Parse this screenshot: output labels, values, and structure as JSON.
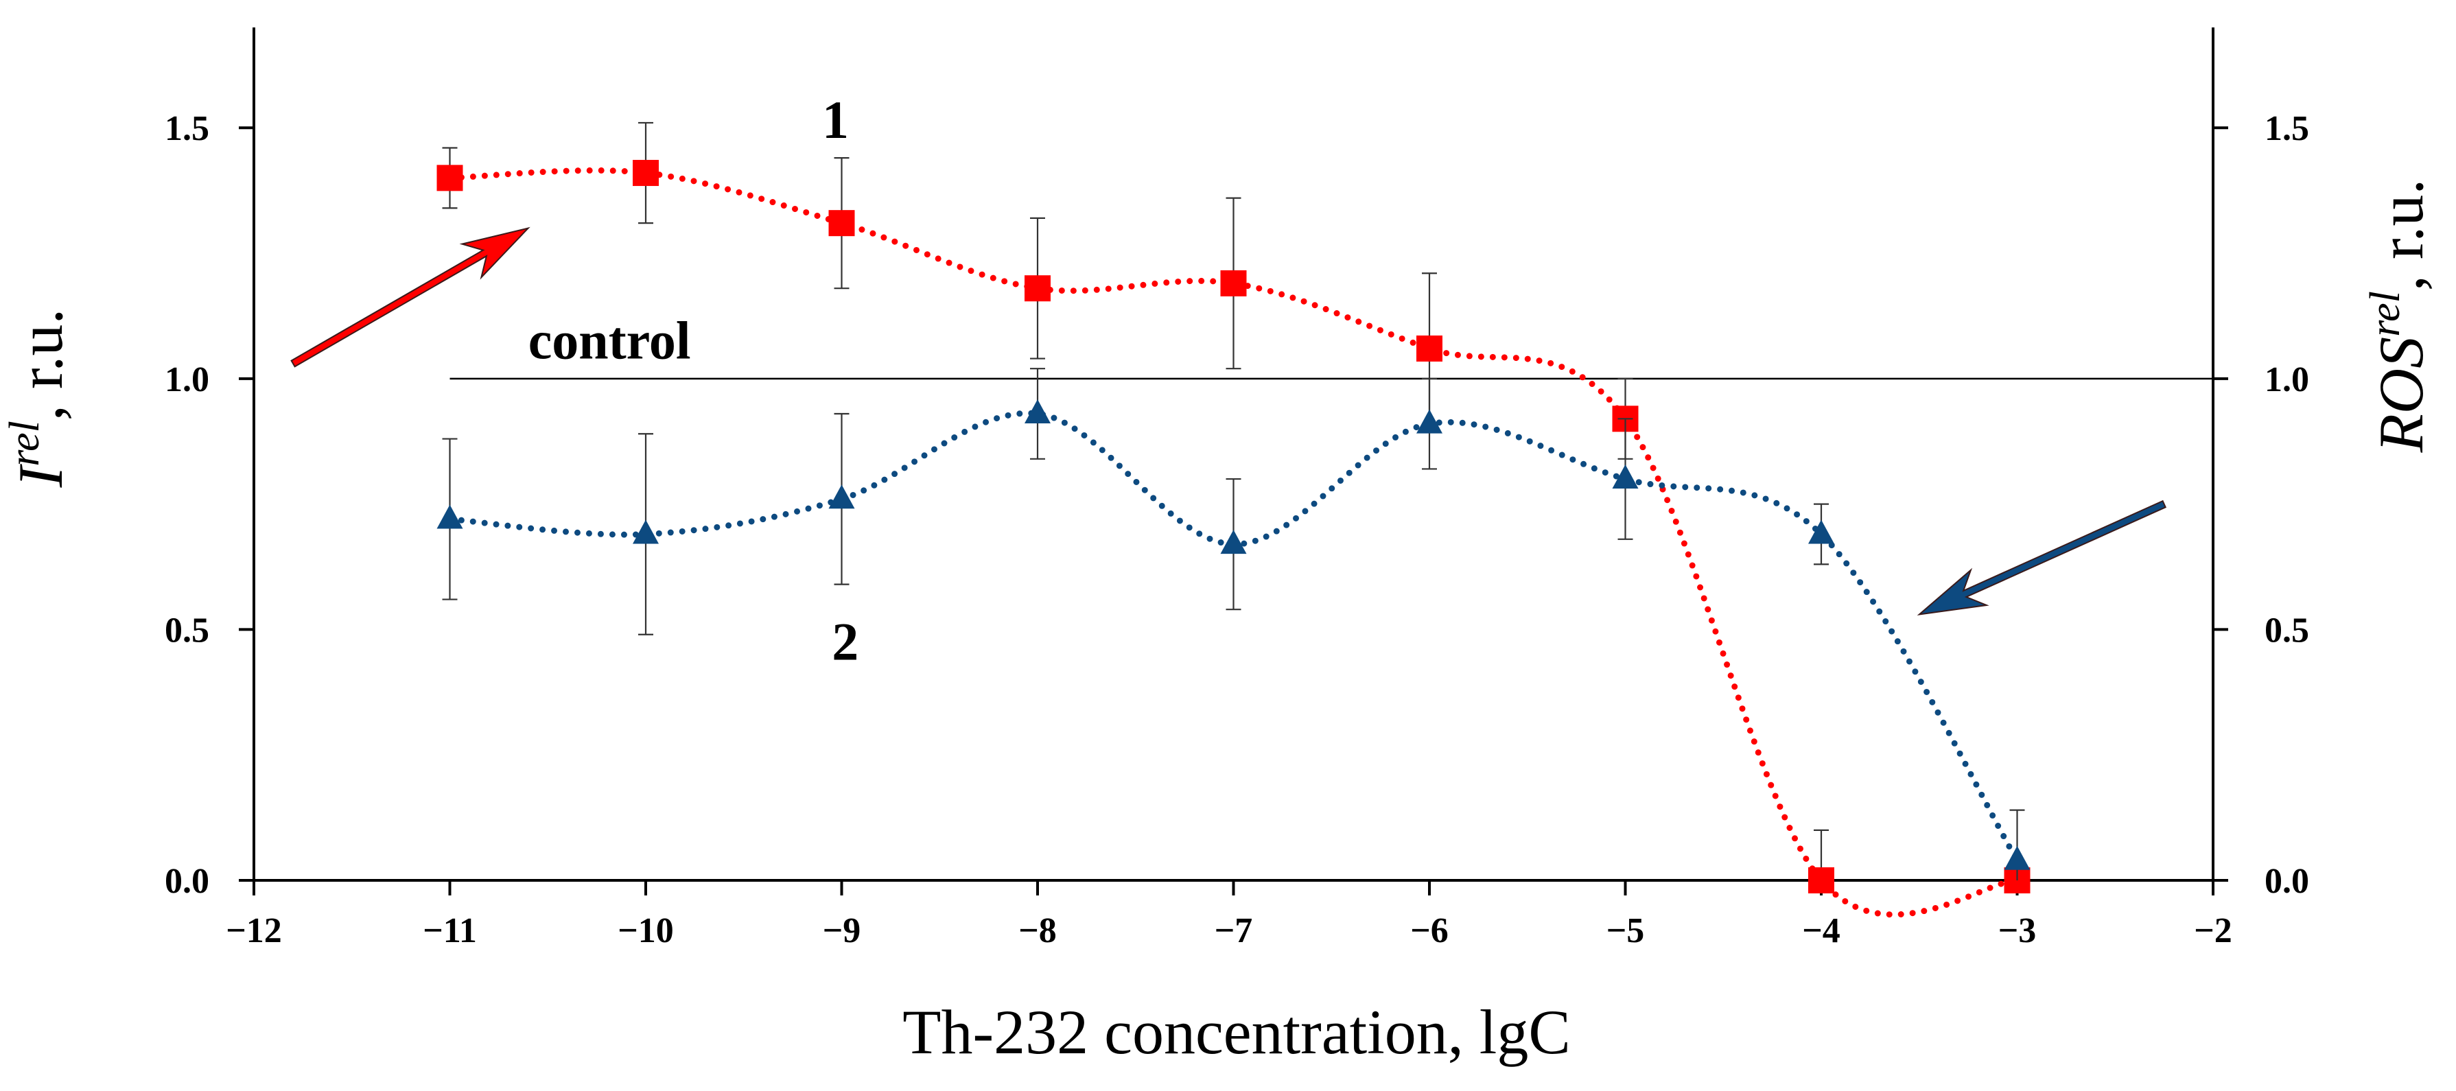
{
  "chart_data": {
    "type": "line",
    "title": "",
    "xlabel": "Th-232 concentration, lgC",
    "ylabel": {
      "main": "I",
      "sup": "rel",
      "unit": ", r.u."
    },
    "y2label": {
      "main": "ROS",
      "sup": "rel",
      "unit": ", r.u."
    },
    "xlim": [
      -12,
      -2
    ],
    "ylim": [
      0,
      1.7
    ],
    "xticks": [
      -12,
      -11,
      -10,
      -9,
      -8,
      -7,
      -6,
      -5,
      -4,
      -3,
      -2
    ],
    "xtick_labels": [
      "−12",
      "−11",
      "−10",
      "−9",
      "−8",
      "−7",
      "−6",
      "−5",
      "−4",
      "−3",
      "−2"
    ],
    "yticks": [
      0,
      0.5,
      1.0,
      1.5
    ],
    "ytick_labels": [
      "0.0",
      "0.5",
      "1.0",
      "1.5"
    ],
    "y2tick_labels": [
      "0.0",
      "0.5",
      "1.0",
      "1.5"
    ],
    "control": {
      "label": "control",
      "y": 1.0,
      "x_range": [
        -11,
        -2
      ]
    },
    "series": [
      {
        "name": "1",
        "color": "#ff0000",
        "marker": "square",
        "x": [
          -11,
          -10,
          -9,
          -8,
          -7,
          -6,
          -5,
          -4,
          -3
        ],
        "y": [
          1.4,
          1.41,
          1.31,
          1.18,
          1.19,
          1.06,
          0.92,
          0.0,
          0.0
        ],
        "err": [
          0.06,
          0.1,
          0.13,
          0.14,
          0.17,
          0.15,
          0.08,
          0.1,
          0.0
        ]
      },
      {
        "name": "2",
        "color": "#0d4a80",
        "marker": "triangle",
        "x": [
          -11,
          -10,
          -9,
          -8,
          -7,
          -6,
          -5,
          -4,
          -3
        ],
        "y": [
          0.72,
          0.69,
          0.76,
          0.93,
          0.67,
          0.91,
          0.8,
          0.69,
          0.04
        ],
        "err": [
          0.16,
          0.2,
          0.17,
          0.09,
          0.13,
          0.09,
          0.12,
          0.06,
          0.1
        ]
      }
    ],
    "annotations": [
      {
        "text": "1",
        "x": -9.1,
        "y": 1.48
      },
      {
        "text": "2",
        "x": -9.05,
        "y": 0.44
      },
      {
        "text": "control",
        "x": -10.6,
        "y": 1.04
      }
    ],
    "arrows": [
      {
        "name": "red-arrow",
        "color": "#ff0000",
        "from": [
          -11.8,
          1.03
        ],
        "to": [
          -10.6,
          1.3
        ]
      },
      {
        "name": "blue-arrow",
        "color": "#0d4a80",
        "from": [
          -2.25,
          0.75
        ],
        "to": [
          -3.5,
          0.53
        ]
      }
    ]
  }
}
